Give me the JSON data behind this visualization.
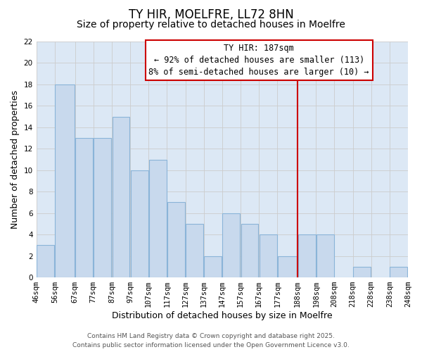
{
  "title": "TY HIR, MOELFRE, LL72 8HN",
  "subtitle": "Size of property relative to detached houses in Moelfre",
  "xlabel": "Distribution of detached houses by size in Moelfre",
  "ylabel": "Number of detached properties",
  "bar_left_edges": [
    46,
    56,
    67,
    77,
    87,
    97,
    107,
    117,
    127,
    137,
    147,
    157,
    167,
    177,
    188,
    198,
    208,
    218,
    228,
    238
  ],
  "bar_widths": [
    10,
    11,
    10,
    10,
    10,
    10,
    10,
    10,
    10,
    10,
    10,
    10,
    10,
    11,
    10,
    10,
    10,
    10,
    10,
    10
  ],
  "bar_heights": [
    3,
    18,
    13,
    13,
    15,
    10,
    11,
    7,
    5,
    2,
    6,
    5,
    4,
    2,
    4,
    4,
    0,
    1,
    0,
    1
  ],
  "bar_color": "#c8d9ed",
  "bar_edgecolor": "#8ab4d8",
  "tick_labels": [
    "46sqm",
    "56sqm",
    "67sqm",
    "77sqm",
    "87sqm",
    "97sqm",
    "107sqm",
    "117sqm",
    "127sqm",
    "137sqm",
    "147sqm",
    "157sqm",
    "167sqm",
    "177sqm",
    "188sqm",
    "198sqm",
    "208sqm",
    "218sqm",
    "228sqm",
    "238sqm",
    "248sqm"
  ],
  "ylim": [
    0,
    22
  ],
  "yticks": [
    0,
    2,
    4,
    6,
    8,
    10,
    12,
    14,
    16,
    18,
    20,
    22
  ],
  "xlim_left": 46,
  "xlim_right": 248,
  "vline_x": 188,
  "vline_color": "#cc0000",
  "annotation_title": "TY HIR: 187sqm",
  "annotation_line1": "← 92% of detached houses are smaller (113)",
  "annotation_line2": "8% of semi-detached houses are larger (10) →",
  "annotation_box_color": "#ffffff",
  "annotation_box_edgecolor": "#cc0000",
  "grid_color": "#cccccc",
  "background_color": "#ffffff",
  "plot_bg": "#dce8f5",
  "footer_line1": "Contains HM Land Registry data © Crown copyright and database right 2025.",
  "footer_line2": "Contains public sector information licensed under the Open Government Licence v3.0.",
  "title_fontsize": 12,
  "subtitle_fontsize": 10,
  "label_fontsize": 9,
  "tick_fontsize": 7.5,
  "annotation_title_fontsize": 9,
  "annotation_body_fontsize": 8.5,
  "footer_fontsize": 6.5
}
